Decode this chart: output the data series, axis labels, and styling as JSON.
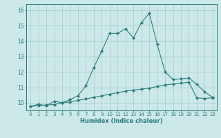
{
  "xlabel": "Humidex (Indice chaleur)",
  "x": [
    0,
    1,
    2,
    3,
    4,
    5,
    6,
    7,
    8,
    9,
    10,
    11,
    12,
    13,
    14,
    15,
    16,
    17,
    18,
    19,
    20,
    21,
    22,
    23
  ],
  "line1_y": [
    9.75,
    9.9,
    9.8,
    10.1,
    10.0,
    10.2,
    10.45,
    11.1,
    12.3,
    13.35,
    14.5,
    14.5,
    14.8,
    14.2,
    15.2,
    15.8,
    13.8,
    12.0,
    11.5,
    11.55,
    11.6,
    11.2,
    10.7,
    10.35
  ],
  "line2_y": [
    9.75,
    9.82,
    9.85,
    9.88,
    10.0,
    10.05,
    10.15,
    10.25,
    10.35,
    10.45,
    10.55,
    10.65,
    10.75,
    10.82,
    10.88,
    10.95,
    11.05,
    11.15,
    11.22,
    11.28,
    11.32,
    10.32,
    10.28,
    10.32
  ],
  "line_color": "#2e7d7d",
  "bg_color": "#cce8e8",
  "grid_color": "#aad0d0",
  "ylim": [
    9.5,
    16.4
  ],
  "yticks": [
    10,
    11,
    12,
    13,
    14,
    15,
    16
  ],
  "xticks": [
    0,
    1,
    2,
    3,
    4,
    5,
    6,
    7,
    8,
    9,
    10,
    11,
    12,
    13,
    14,
    15,
    16,
    17,
    18,
    19,
    20,
    21,
    22,
    23
  ]
}
